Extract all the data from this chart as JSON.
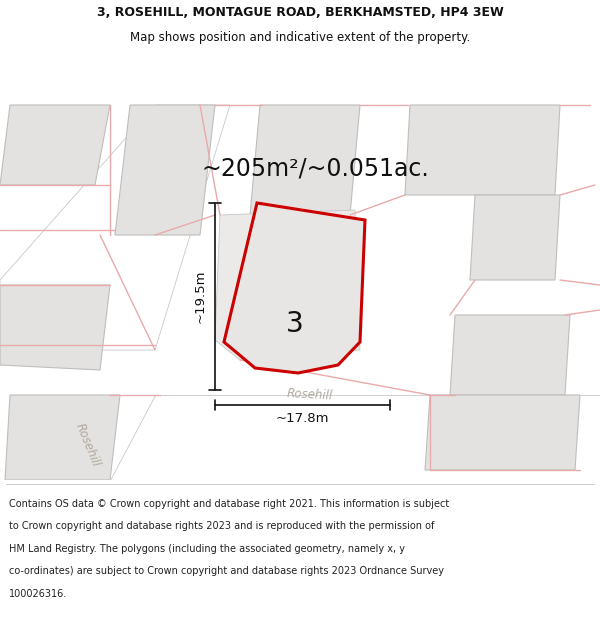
{
  "title_line1": "3, ROSEHILL, MONTAGUE ROAD, BERKHAMSTED, HP4 3EW",
  "title_line2": "Map shows position and indicative extent of the property.",
  "area_text": "~205m²/~0.051ac.",
  "label_number": "3",
  "dim_height": "~19.5m",
  "dim_width": "~17.8m",
  "road_label1": "Rosehill",
  "road_label2": "Rosehill",
  "footer_lines": [
    "Contains OS data © Crown copyright and database right 2021. This information is subject",
    "to Crown copyright and database rights 2023 and is reproduced with the permission of",
    "HM Land Registry. The polygons (including the associated geometry, namely x, y",
    "co-ordinates) are subject to Crown copyright and database rights 2023 Ordnance Survey",
    "100026316."
  ],
  "map_bg": "#f2f0ee",
  "road_fill": "#ffffff",
  "road_stroke": "#c8c8c8",
  "building_fill": "#e4e2e0",
  "building_stroke": "#c0bebb",
  "pink_line": "#e8aaaa",
  "prop_fill": "#e8e6e4",
  "prop_stroke": "#cc0000",
  "prop_lw": 2.2,
  "text_color": "#111111",
  "dim_color": "#111111",
  "road_text_color": "#b0a8a0",
  "footer_color": "#222222",
  "title_fontsize": 9.0,
  "area_fontsize": 17,
  "number_fontsize": 20,
  "dim_fontsize": 9.5,
  "road_fontsize": 8.5,
  "footer_fontsize": 7.0
}
